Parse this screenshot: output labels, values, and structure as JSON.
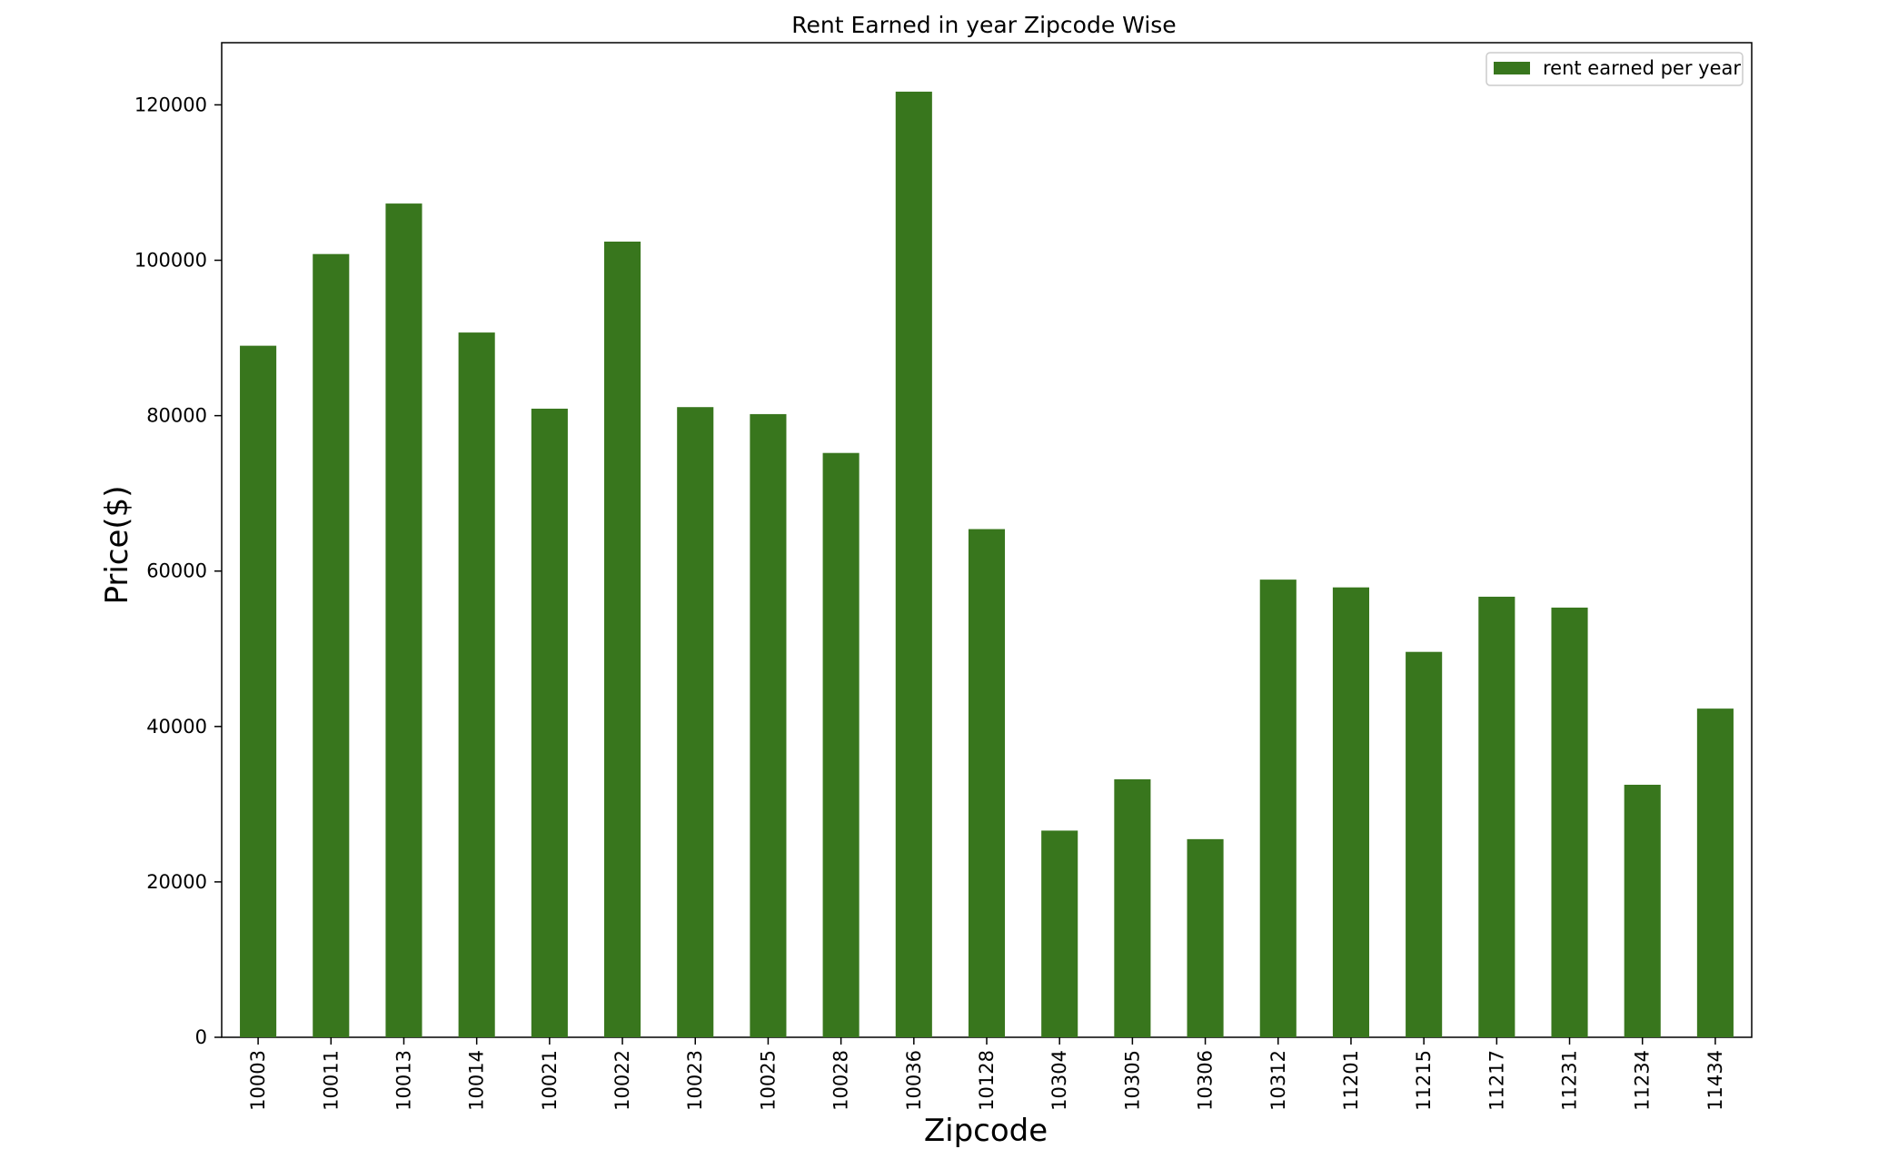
{
  "chart_data": {
    "type": "bar",
    "title": "Rent Earned in year Zipcode Wise",
    "xlabel": "Zipcode",
    "ylabel": "Price($)",
    "ylim": [
      0,
      128000
    ],
    "yticks": [
      0,
      20000,
      40000,
      60000,
      80000,
      100000,
      120000
    ],
    "ytick_labels": [
      "0",
      "20000",
      "40000",
      "60000",
      "80000",
      "100000",
      "120000"
    ],
    "categories": [
      "10003",
      "10011",
      "10013",
      "10014",
      "10021",
      "10022",
      "10023",
      "10025",
      "10028",
      "10036",
      "10128",
      "10304",
      "10305",
      "10306",
      "10312",
      "11201",
      "11215",
      "11217",
      "11231",
      "11234",
      "11434"
    ],
    "series": [
      {
        "name": "rent earned per year",
        "color": "#38761d",
        "values": [
          89000,
          100800,
          107300,
          90700,
          80900,
          102400,
          81100,
          80200,
          75200,
          121700,
          65400,
          26600,
          33200,
          25500,
          58900,
          57900,
          49600,
          56700,
          55300,
          32500,
          42300
        ]
      }
    ],
    "legend_position": "top-right",
    "grid": false
  }
}
